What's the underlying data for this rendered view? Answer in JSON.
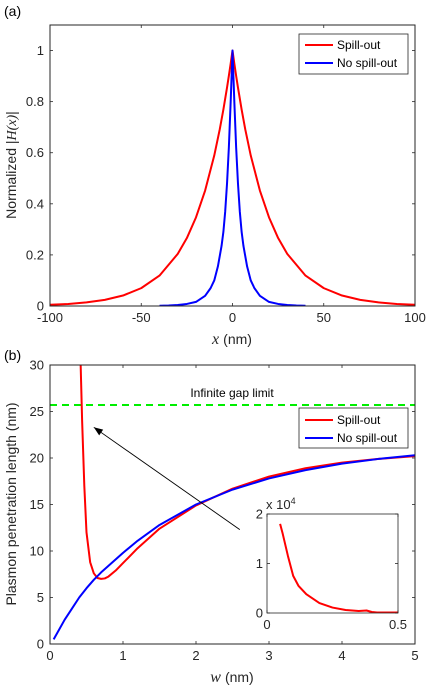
{
  "chart_data": [
    {
      "panel_label": "(a)",
      "type": "line",
      "xlabel_var": "x",
      "xlabel_unit": "(nm)",
      "ylabel_prefix": "Normalized |",
      "ylabel_var": "H(x)",
      "ylabel_suffix": "|",
      "xlim": [
        -100,
        100
      ],
      "ylim": [
        0,
        1.1
      ],
      "xticks": [
        -100,
        -50,
        0,
        50,
        100
      ],
      "yticks": [
        0,
        0.2,
        0.4,
        0.6,
        0.8,
        1
      ],
      "grid": false,
      "legend_position": "top-right",
      "series": [
        {
          "name": "Spill-out",
          "color": "#ff0000",
          "x": [
            -100,
            -90,
            -80,
            -70,
            -60,
            -50,
            -40,
            -30,
            -25,
            -20,
            -15,
            -10,
            -7,
            -5,
            -3,
            -2,
            -1,
            0,
            1,
            2,
            3,
            5,
            7,
            10,
            15,
            20,
            25,
            30,
            40,
            50,
            60,
            70,
            80,
            90,
            100
          ],
          "y": [
            0.005,
            0.008,
            0.014,
            0.024,
            0.041,
            0.07,
            0.119,
            0.204,
            0.266,
            0.347,
            0.452,
            0.589,
            0.691,
            0.769,
            0.855,
            0.901,
            0.949,
            1,
            0.949,
            0.901,
            0.855,
            0.769,
            0.691,
            0.589,
            0.452,
            0.347,
            0.266,
            0.204,
            0.119,
            0.07,
            0.041,
            0.024,
            0.014,
            0.008,
            0.005
          ]
        },
        {
          "name": "No spill-out",
          "color": "#0000ff",
          "x": [
            -40,
            -35,
            -30,
            -25,
            -20,
            -15,
            -12,
            -10,
            -8,
            -6,
            -5,
            -4,
            -3,
            -2,
            -1,
            0,
            1,
            2,
            3,
            4,
            5,
            6,
            8,
            10,
            12,
            15,
            20,
            25,
            30,
            35,
            40
          ],
          "y": [
            0.001,
            0.002,
            0.004,
            0.008,
            0.016,
            0.04,
            0.07,
            0.1,
            0.155,
            0.235,
            0.29,
            0.37,
            0.48,
            0.62,
            0.8,
            1,
            0.8,
            0.62,
            0.48,
            0.37,
            0.29,
            0.235,
            0.155,
            0.1,
            0.07,
            0.04,
            0.016,
            0.008,
            0.004,
            0.002,
            0.001
          ]
        }
      ]
    },
    {
      "panel_label": "(b)",
      "type": "line",
      "xlabel_var": "w",
      "xlabel_unit": "(nm)",
      "ylabel": "Plasmon penetration length (nm)",
      "xlim": [
        0,
        5
      ],
      "ylim": [
        0,
        30
      ],
      "xticks": [
        0,
        1,
        2,
        3,
        4,
        5
      ],
      "yticks": [
        0,
        5,
        10,
        15,
        20,
        25,
        30
      ],
      "grid": false,
      "legend_position": "right, below limit line",
      "reference_line": {
        "label": "Infinite gap limit",
        "y": 25.7,
        "color": "#00ee00",
        "style": "dashed"
      },
      "series": [
        {
          "name": "Spill-out",
          "color": "#ff0000",
          "x": [
            0.42,
            0.44,
            0.47,
            0.5,
            0.55,
            0.6,
            0.65,
            0.7,
            0.75,
            0.8,
            0.9,
            1.0,
            1.2,
            1.5,
            2.0,
            2.5,
            3.0,
            3.5,
            4.0,
            4.5,
            5.0
          ],
          "y": [
            30,
            24,
            17,
            12,
            8.8,
            7.6,
            7.1,
            7.0,
            7.05,
            7.25,
            7.9,
            8.7,
            10.3,
            12.4,
            14.9,
            16.7,
            18.0,
            18.9,
            19.5,
            19.9,
            20.2
          ]
        },
        {
          "name": "No spill-out",
          "color": "#0000ff",
          "x": [
            0.05,
            0.1,
            0.2,
            0.3,
            0.4,
            0.5,
            0.6,
            0.7,
            0.8,
            1.0,
            1.2,
            1.5,
            2.0,
            2.5,
            3.0,
            3.5,
            4.0,
            4.5,
            5.0
          ],
          "y": [
            0.5,
            1.2,
            2.6,
            3.8,
            5.0,
            6.0,
            6.9,
            7.7,
            8.4,
            9.8,
            11.1,
            12.8,
            15.0,
            16.6,
            17.8,
            18.7,
            19.4,
            19.9,
            20.3
          ]
        }
      ],
      "annotation": {
        "type": "arrow",
        "from": [
          2.6,
          12.3
        ],
        "to": [
          0.6,
          23.3
        ]
      },
      "inset": {
        "type": "line",
        "xlim": [
          0,
          0.5
        ],
        "ylim": [
          0,
          2
        ],
        "xticks": [
          0,
          0.5
        ],
        "yticks": [
          0,
          1,
          2
        ],
        "y_multiplier_base": "x 10",
        "y_multiplier_exp": "4",
        "series": [
          {
            "name": "Spill-out",
            "color": "#ff0000",
            "x": [
              0.05,
              0.06,
              0.08,
              0.1,
              0.12,
              0.15,
              0.2,
              0.25,
              0.3,
              0.35,
              0.38,
              0.4,
              0.42,
              0.45,
              0.5
            ],
            "y": [
              1.8,
              1.6,
              1.15,
              0.75,
              0.55,
              0.38,
              0.2,
              0.11,
              0.06,
              0.04,
              0.05,
              0.02,
              0.01,
              0.01,
              0.01
            ]
          }
        ]
      }
    }
  ]
}
